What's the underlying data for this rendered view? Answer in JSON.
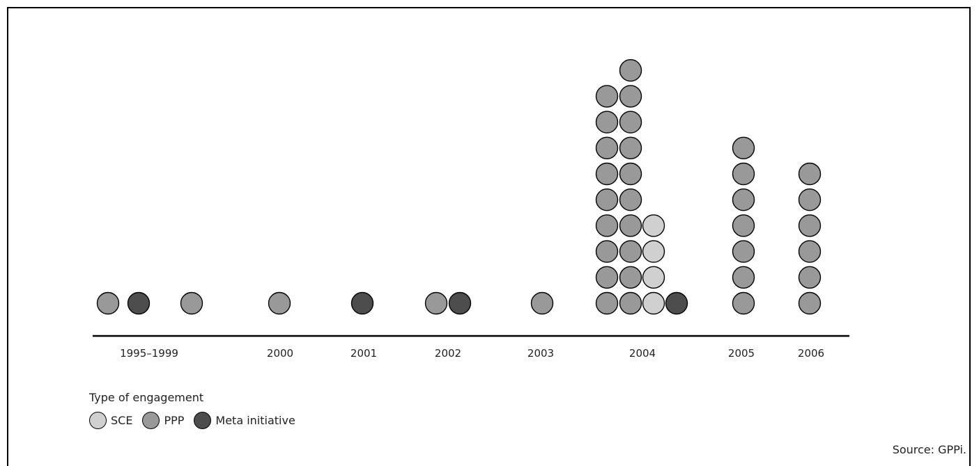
{
  "chart_data": {
    "type": "scatter",
    "subtype": "dot-stack",
    "categories": [
      "1995–1999",
      "2000",
      "2001",
      "2002",
      "2003",
      "2004",
      "2005",
      "2006"
    ],
    "columns": [
      {
        "category": "1995–1999",
        "stacks": [
          [
            "PPP"
          ],
          [
            "Meta initiative"
          ],
          [
            "PPP"
          ]
        ]
      },
      {
        "category": "2000",
        "stacks": [
          [
            "PPP"
          ]
        ]
      },
      {
        "category": "2001",
        "stacks": [
          [
            "Meta initiative"
          ]
        ]
      },
      {
        "category": "2002",
        "stacks": [
          [
            "PPP"
          ],
          [
            "Meta initiative"
          ]
        ]
      },
      {
        "category": "2003",
        "stacks": [
          [
            "PPP"
          ]
        ]
      },
      {
        "category": "2004",
        "stacks": [
          [
            "PPP",
            "PPP",
            "PPP",
            "PPP",
            "PPP",
            "PPP",
            "PPP",
            "PPP",
            "PPP"
          ],
          [
            "PPP",
            "PPP",
            "PPP",
            "PPP",
            "PPP",
            "PPP",
            "PPP",
            "PPP",
            "PPP",
            "PPP"
          ],
          [
            "SCE",
            "SCE",
            "SCE",
            "SCE"
          ],
          [
            "Meta initiative"
          ]
        ]
      },
      {
        "category": "2005",
        "stacks": [
          [
            "PPP",
            "PPP",
            "PPP",
            "PPP",
            "PPP",
            "PPP",
            "PPP"
          ]
        ]
      },
      {
        "category": "2006",
        "stacks": [
          [
            "PPP",
            "PPP",
            "PPP",
            "PPP",
            "PPP",
            "PPP"
          ]
        ]
      }
    ],
    "series": [
      {
        "name": "SCE",
        "color": "#d0d0d0"
      },
      {
        "name": "PPP",
        "color": "#999999"
      },
      {
        "name": "Meta initiative",
        "color": "#4d4d4d"
      }
    ],
    "legend": {
      "title": "Type of engagement",
      "position": "bottom-left"
    },
    "source": "Source: GPPi.",
    "grid": false
  }
}
